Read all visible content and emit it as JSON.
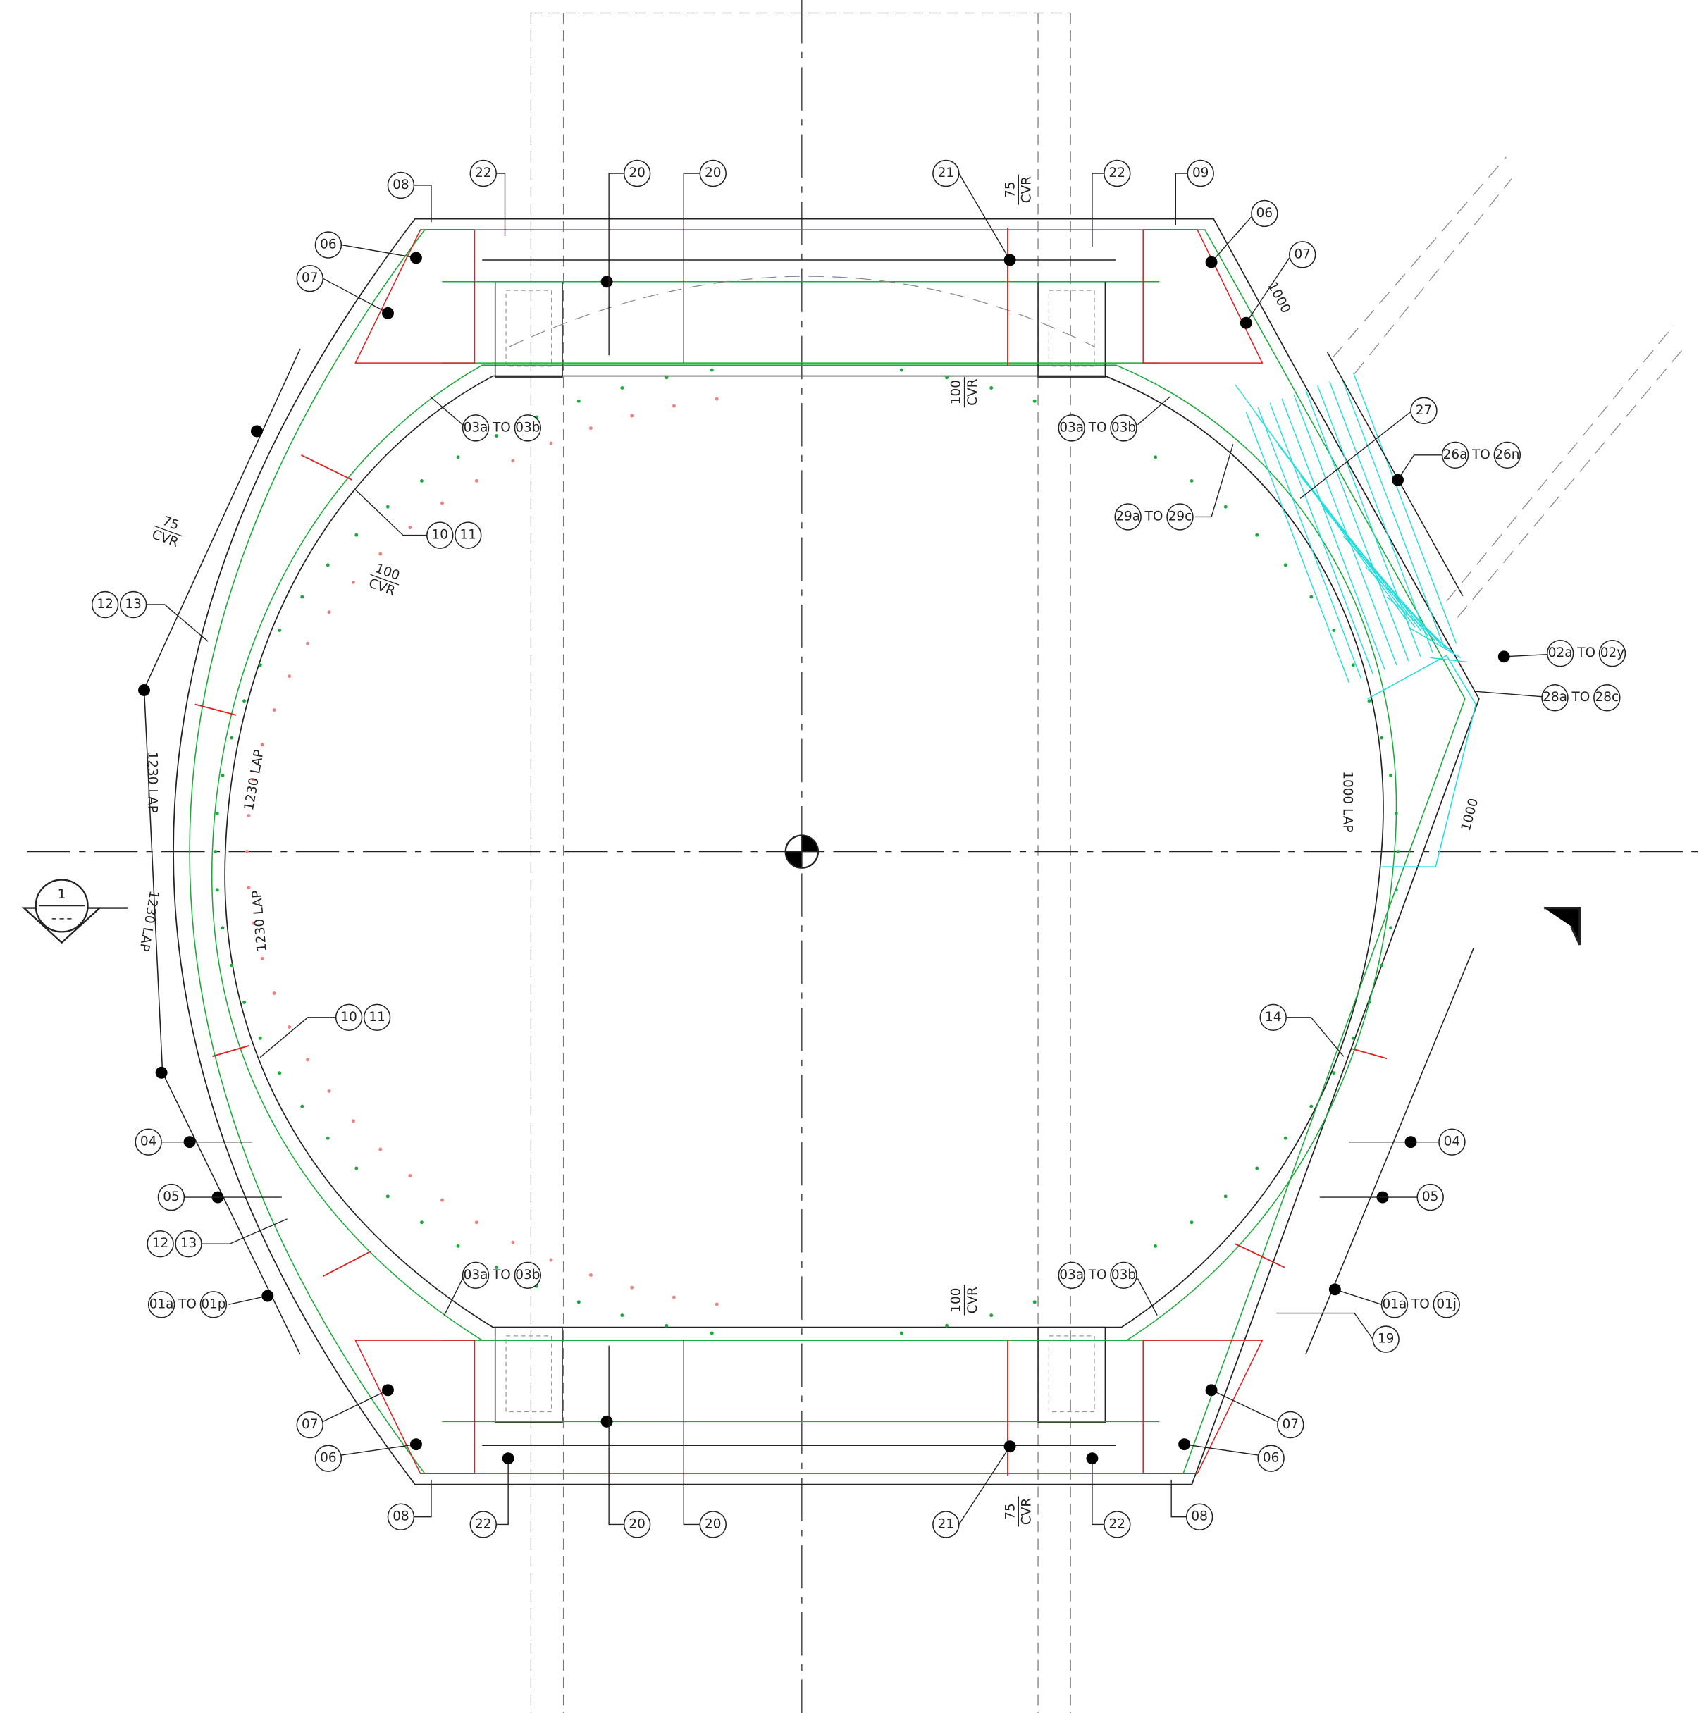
{
  "callouts": [
    {
      "labels": [
        "08"
      ]
    },
    {
      "labels": [
        "22"
      ]
    },
    {
      "labels": [
        "20"
      ]
    },
    {
      "labels": [
        "20"
      ]
    },
    {
      "labels": [
        "21"
      ]
    },
    {
      "labels": [
        "22"
      ]
    },
    {
      "labels": [
        "09"
      ]
    },
    {
      "labels": [
        "06"
      ]
    },
    {
      "labels": [
        "07"
      ]
    },
    {
      "labels": [
        "06"
      ]
    },
    {
      "labels": [
        "07"
      ]
    },
    {
      "labels": [
        "03a",
        "03b"
      ],
      "sep": "TO"
    },
    {
      "labels": [
        "03a",
        "03b"
      ],
      "sep": "TO"
    },
    {
      "labels": [
        "10",
        "11"
      ]
    },
    {
      "labels": [
        "12",
        "13"
      ]
    },
    {
      "labels": [
        "27"
      ]
    },
    {
      "labels": [
        "26a",
        "26n"
      ],
      "sep": "TO"
    },
    {
      "labels": [
        "29a",
        "29c"
      ],
      "sep": "TO"
    },
    {
      "labels": [
        "02a",
        "02y"
      ],
      "sep": "TO"
    },
    {
      "labels": [
        "28a",
        "28c"
      ],
      "sep": "TO"
    },
    {
      "labels": [
        "10",
        "11"
      ]
    },
    {
      "labels": [
        "14"
      ]
    },
    {
      "labels": [
        "04"
      ]
    },
    {
      "labels": [
        "04"
      ]
    },
    {
      "labels": [
        "05"
      ]
    },
    {
      "labels": [
        "05"
      ]
    },
    {
      "labels": [
        "12",
        "13"
      ]
    },
    {
      "labels": [
        "01a",
        "01p"
      ],
      "sep": "TO"
    },
    {
      "labels": [
        "01a",
        "01j"
      ],
      "sep": "TO"
    },
    {
      "labels": [
        "19"
      ]
    },
    {
      "labels": [
        "03a",
        "03b"
      ],
      "sep": "TO"
    },
    {
      "labels": [
        "03a",
        "03b"
      ],
      "sep": "TO"
    },
    {
      "labels": [
        "07"
      ]
    },
    {
      "labels": [
        "06"
      ]
    },
    {
      "labels": [
        "07"
      ]
    },
    {
      "labels": [
        "06"
      ]
    },
    {
      "labels": [
        "08"
      ]
    },
    {
      "labels": [
        "22"
      ]
    },
    {
      "labels": [
        "20"
      ]
    },
    {
      "labels": [
        "20"
      ]
    },
    {
      "labels": [
        "21"
      ]
    },
    {
      "labels": [
        "22"
      ]
    },
    {
      "labels": [
        "08"
      ]
    }
  ],
  "dims": [
    {
      "lines": [
        "75",
        "CVR"
      ]
    },
    {
      "lines": [
        "100",
        "CVR"
      ]
    },
    {
      "lines": [
        "1000"
      ]
    },
    {
      "lines": [
        "75",
        "CVR"
      ]
    },
    {
      "lines": [
        "100",
        "CVR"
      ]
    },
    {
      "lines": [
        "1230 LAP"
      ]
    },
    {
      "lines": [
        "1230 LAP"
      ]
    },
    {
      "lines": [
        "1230 LAP"
      ]
    },
    {
      "lines": [
        "1230 LAP"
      ]
    },
    {
      "lines": [
        "1000 LAP"
      ]
    },
    {
      "lines": [
        "1000"
      ]
    },
    {
      "lines": [
        "100",
        "CVR"
      ]
    },
    {
      "lines": [
        "75",
        "CVR"
      ]
    }
  ],
  "section": {
    "label": "1"
  }
}
